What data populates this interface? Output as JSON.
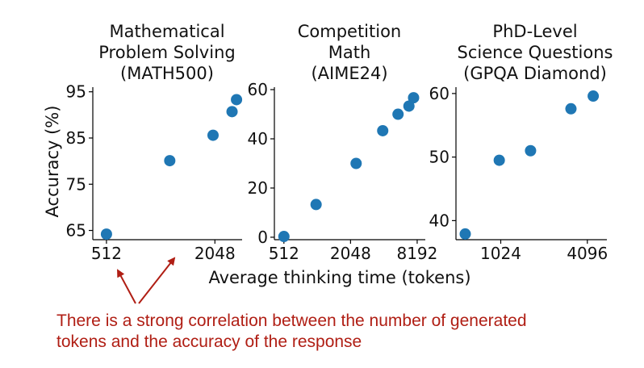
{
  "colors": {
    "point": "#1f77b4",
    "annotation": "#b01e14"
  },
  "shared_xlabel": "Average thinking time (tokens)",
  "shared_ylabel": "Accuracy (%)",
  "annotation": {
    "line1": "There is a strong correlation between the number of generated",
    "line2": "tokens and the accuracy of the response"
  },
  "chart_data": [
    {
      "type": "scatter",
      "title": [
        "Mathematical",
        "Problem Solving",
        "(MATH500)"
      ],
      "xscale": "log2",
      "xlim": [
        430,
        2900
      ],
      "ylim": [
        63,
        96
      ],
      "xticks": [
        512,
        2048
      ],
      "xtick_labels": [
        "512",
        "2048"
      ],
      "yticks": [
        65,
        75,
        85,
        95
      ],
      "ytick_labels": [
        "65",
        "75",
        "85",
        "95"
      ],
      "x": [
        512,
        1150,
        2000,
        2550,
        2700
      ],
      "y": [
        64.2,
        80.1,
        85.6,
        90.7,
        93.3
      ]
    },
    {
      "type": "scatter",
      "title": [
        "Competition",
        "Math",
        "(AIME24)"
      ],
      "xscale": "log2",
      "xlim": [
        420,
        9700
      ],
      "ylim": [
        -1,
        61
      ],
      "xticks": [
        512,
        2048,
        8192
      ],
      "xtick_labels": [
        "512",
        "2048",
        "8192"
      ],
      "yticks": [
        0,
        20,
        40,
        60
      ],
      "ytick_labels": [
        "0",
        "20",
        "40",
        "60"
      ],
      "x": [
        512,
        1000,
        2300,
        4000,
        5500,
        6900,
        7600
      ],
      "y": [
        0.3,
        13.3,
        30.0,
        43.3,
        50.0,
        53.3,
        56.7
      ]
    },
    {
      "type": "scatter",
      "title": [
        "PhD-Level",
        "Science Questions",
        "(GPQA Diamond)"
      ],
      "xscale": "log2",
      "xlim": [
        500,
        5600
      ],
      "ylim": [
        37,
        61
      ],
      "xticks": [
        1024,
        4096
      ],
      "xtick_labels": [
        "1024",
        "4096"
      ],
      "yticks": [
        40,
        50,
        60
      ],
      "ytick_labels": [
        "40",
        "50",
        "60"
      ],
      "x": [
        580,
        1000,
        1650,
        3150,
        4500
      ],
      "y": [
        37.9,
        49.5,
        51.0,
        57.6,
        59.6
      ]
    }
  ]
}
